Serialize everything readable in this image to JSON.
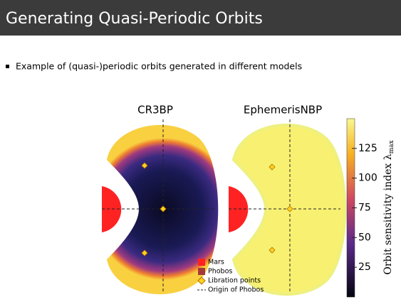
{
  "header": {
    "title": "Generating Quasi-Periodic Orbits"
  },
  "bullets": [
    "Example of (quasi-)periodic orbits generated in different models"
  ],
  "figure": {
    "panels": [
      "CR3BP",
      "EphemerisNBP"
    ],
    "legend": [
      "Mars",
      "Phobos",
      "Libration points",
      "Origin of Phobos"
    ],
    "colorbar": {
      "label": "Orbit sensitivity index λ",
      "label_subscript": "max",
      "lim": [
        0,
        150
      ],
      "ticks": [
        25,
        50,
        75,
        100,
        125
      ]
    }
  }
}
